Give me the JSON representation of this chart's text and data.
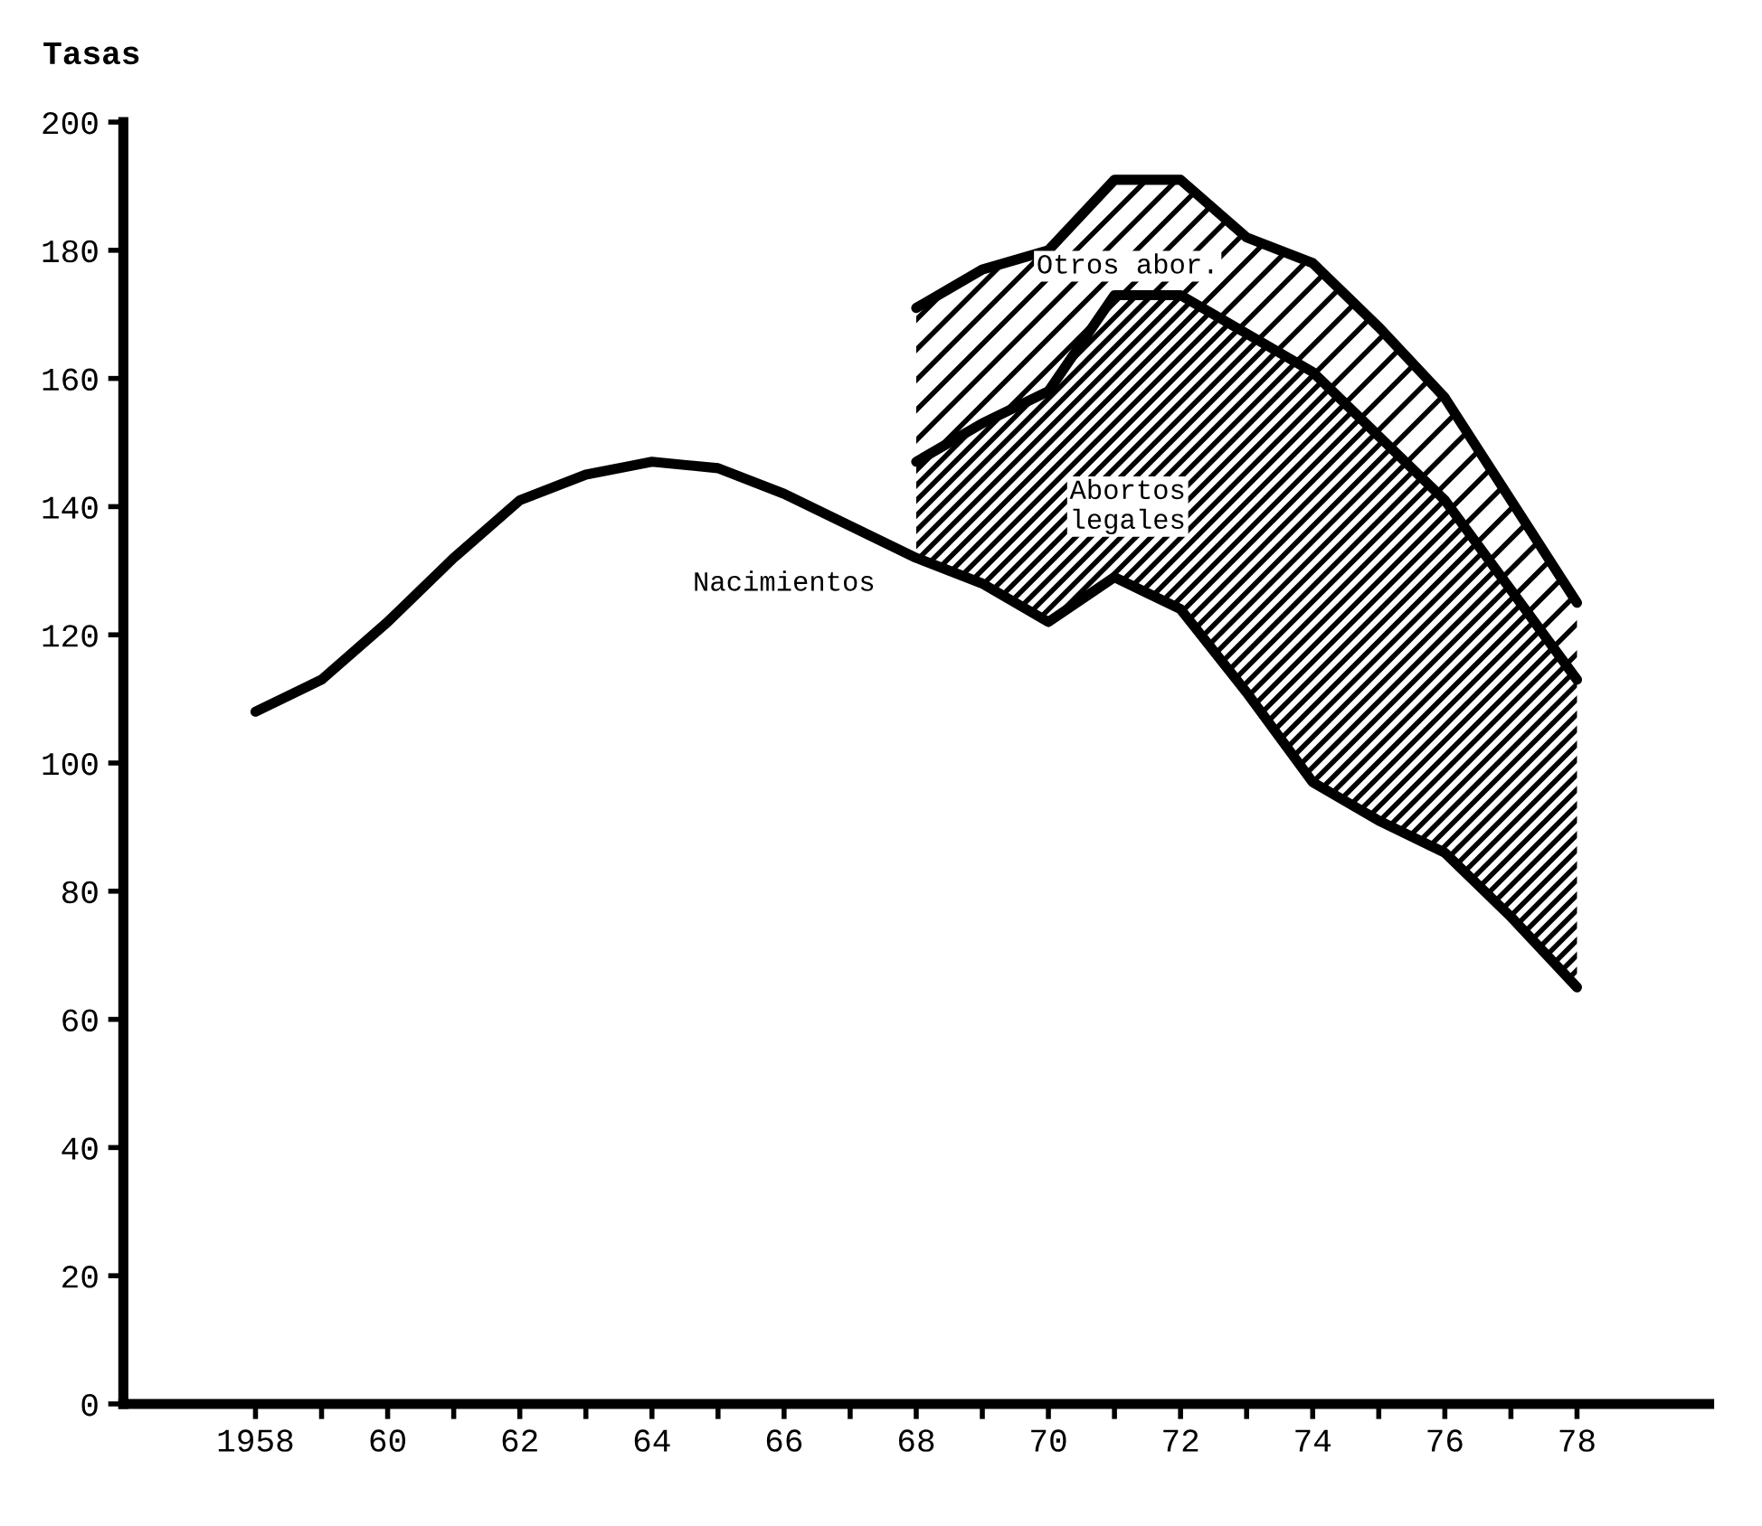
{
  "chart_data": {
    "type": "line",
    "ylabel": "Tasas",
    "x": [
      1958,
      1959,
      1960,
      1961,
      1962,
      1963,
      1964,
      1965,
      1966,
      1967,
      1968,
      1969,
      1970,
      1971,
      1972,
      1973,
      1974,
      1975,
      1976,
      1977,
      1978
    ],
    "series": [
      {
        "name": "Nacimientos",
        "color": "#000000",
        "values": [
          108,
          113,
          122,
          132,
          141,
          145,
          147,
          146,
          142,
          137,
          132,
          128,
          122,
          129,
          124,
          111,
          97,
          91,
          86,
          76,
          65
        ]
      },
      {
        "name": "Abortos\nlegales",
        "type": "area",
        "color": "#000000",
        "values": [
          null,
          null,
          null,
          null,
          null,
          null,
          null,
          null,
          null,
          null,
          147,
          153,
          158,
          173,
          173,
          167,
          161,
          151,
          141,
          127,
          113
        ]
      },
      {
        "name": "Otros abor.",
        "type": "area",
        "color": "#000000",
        "values": [
          null,
          null,
          null,
          null,
          null,
          null,
          null,
          null,
          null,
          null,
          171,
          177,
          180,
          191,
          191,
          182,
          178,
          168,
          157,
          141,
          125
        ]
      }
    ],
    "xlim": [
      1956,
      1980
    ],
    "ylim": [
      0,
      200
    ],
    "xticks": [
      {
        "value": 1958,
        "label": "1958"
      },
      {
        "value": 1959,
        "label": null
      },
      {
        "value": 1960,
        "label": "60"
      },
      {
        "value": 1961,
        "label": null
      },
      {
        "value": 1962,
        "label": "62"
      },
      {
        "value": 1963,
        "label": null
      },
      {
        "value": 1964,
        "label": "64"
      },
      {
        "value": 1965,
        "label": null
      },
      {
        "value": 1966,
        "label": "66"
      },
      {
        "value": 1967,
        "label": null
      },
      {
        "value": 1968,
        "label": "68"
      },
      {
        "value": 1969,
        "label": null
      },
      {
        "value": 1970,
        "label": "70"
      },
      {
        "value": 1971,
        "label": null
      },
      {
        "value": 1972,
        "label": "72"
      },
      {
        "value": 1973,
        "label": null
      },
      {
        "value": 1974,
        "label": "74"
      },
      {
        "value": 1975,
        "label": null
      },
      {
        "value": 1976,
        "label": "76"
      },
      {
        "value": 1977,
        "label": null
      },
      {
        "value": 1978,
        "label": "78"
      }
    ],
    "yticks": [
      0,
      20,
      40,
      60,
      80,
      100,
      120,
      140,
      160,
      180,
      200
    ],
    "grid": false,
    "legend": false
  }
}
